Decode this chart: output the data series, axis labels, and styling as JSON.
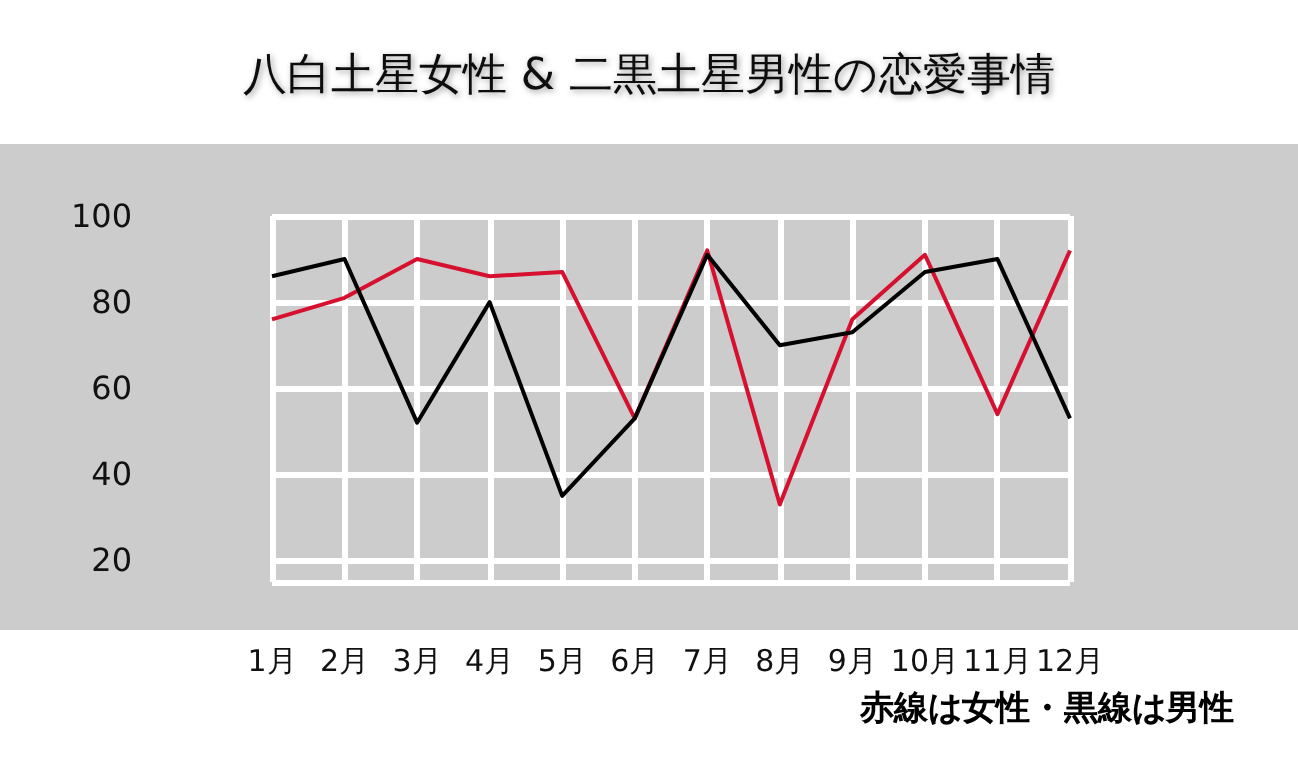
{
  "chart_data": {
    "type": "line",
    "title": "八白土星女性 & 二黒土星男性の恋愛事情",
    "categories": [
      "1月",
      "2月",
      "3月",
      "4月",
      "5月",
      "6月",
      "7月",
      "8月",
      "9月",
      "10月",
      "11月",
      "12月"
    ],
    "series": [
      {
        "color": "#d6102e",
        "values": [
          76,
          81,
          90,
          86,
          87,
          53,
          92,
          33,
          76,
          91,
          54,
          92
        ]
      },
      {
        "color": "#000000",
        "values": [
          86,
          90,
          52,
          80,
          35,
          53,
          91,
          70,
          73,
          87,
          90,
          53
        ]
      }
    ],
    "ylim": [
      15,
      100
    ],
    "yticks": [
      20,
      40,
      60,
      80,
      100
    ],
    "grid": true,
    "marker": "none",
    "line_style": "solid",
    "annotations": [
      "赤線は女性・黒線は男性"
    ]
  }
}
